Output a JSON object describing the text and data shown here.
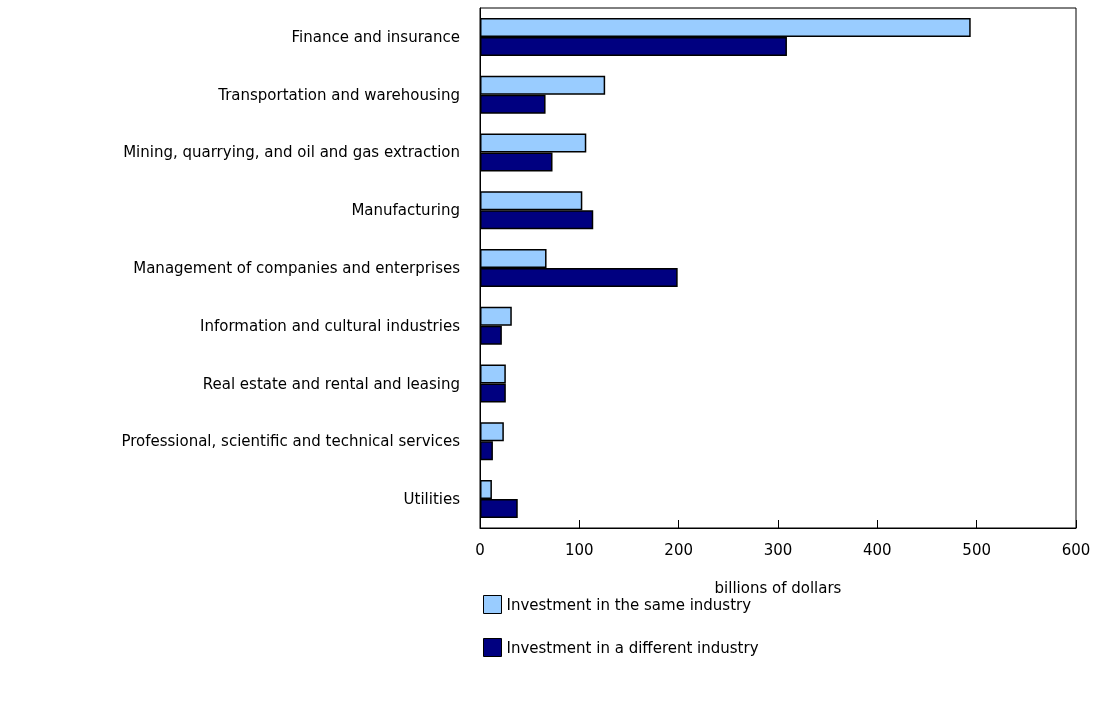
{
  "chart_data": {
    "type": "bar",
    "orientation": "horizontal",
    "xlabel": "billions of dollars",
    "categories": [
      "Finance and insurance",
      "Transportation and warehousing",
      "Mining, quarrying, and oil and gas extraction",
      "Manufacturing",
      "Management of companies and enterprises",
      "Information and cultural industries",
      "Real estate and rental and leasing",
      "Professional, scientific and technical services",
      "Utilities"
    ],
    "series": [
      {
        "name": "Investment in the same industry",
        "color": "#99ccff",
        "values": [
          494,
          126,
          107,
          103,
          67,
          32,
          26,
          24,
          12
        ]
      },
      {
        "name": "Investment in a different industry",
        "color": "#000080",
        "values": [
          309,
          66,
          73,
          114,
          199,
          22,
          26,
          13,
          38
        ]
      }
    ],
    "xlim": [
      0,
      600
    ],
    "xticks": [
      0,
      100,
      200,
      300,
      400,
      500,
      600
    ],
    "grid": false,
    "legend": "bottom"
  }
}
